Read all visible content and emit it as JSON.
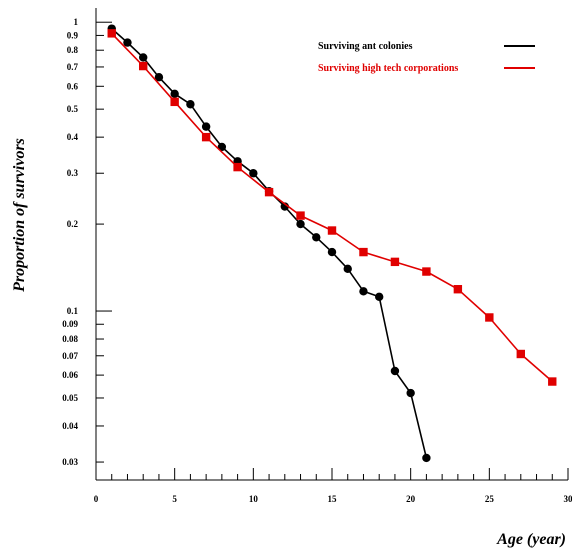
{
  "chart_data": {
    "type": "line",
    "xlabel": "Age (year)",
    "ylabel": "Proportion of survivors",
    "xlim": [
      0,
      30
    ],
    "ylim": [
      0.026,
      1.12
    ],
    "yscale": "log",
    "grid": false,
    "legend_position": "top-right",
    "x_ticks": [
      {
        "v": 0,
        "label": "0"
      },
      {
        "v": 5,
        "label": "5"
      },
      {
        "v": 10,
        "label": "10"
      },
      {
        "v": 15,
        "label": "15"
      },
      {
        "v": 20,
        "label": "20"
      },
      {
        "v": 25,
        "label": "25"
      },
      {
        "v": 30,
        "label": "30"
      }
    ],
    "y_ticks": [
      {
        "v": 1,
        "label": "1"
      },
      {
        "v": 0.9,
        "label": "0.9"
      },
      {
        "v": 0.8,
        "label": "0.8"
      },
      {
        "v": 0.7,
        "label": "0.7"
      },
      {
        "v": 0.6,
        "label": "0.6"
      },
      {
        "v": 0.5,
        "label": "0.5"
      },
      {
        "v": 0.4,
        "label": "0.4"
      },
      {
        "v": 0.3,
        "label": "0.3"
      },
      {
        "v": 0.2,
        "label": "0.2"
      },
      {
        "v": 0.1,
        "label": "0.1"
      },
      {
        "v": 0.09,
        "label": "0.09"
      },
      {
        "v": 0.08,
        "label": "0.08"
      },
      {
        "v": 0.07,
        "label": "0.07"
      },
      {
        "v": 0.06,
        "label": "0.06"
      },
      {
        "v": 0.05,
        "label": "0.05"
      },
      {
        "v": 0.04,
        "label": "0.04"
      },
      {
        "v": 0.03,
        "label": "0.03"
      }
    ],
    "series": [
      {
        "name": "Surviving ant colonies",
        "color": "#000000",
        "marker": "circle",
        "x": [
          1,
          2,
          3,
          4,
          5,
          6,
          7,
          8,
          9,
          10,
          11,
          12,
          13,
          14,
          15,
          16,
          17,
          18,
          19,
          20,
          21
        ],
        "y": [
          0.95,
          0.85,
          0.755,
          0.645,
          0.565,
          0.52,
          0.435,
          0.37,
          0.33,
          0.3,
          0.26,
          0.23,
          0.2,
          0.18,
          0.16,
          0.14,
          0.117,
          0.112,
          0.062,
          0.052,
          0.031
        ]
      },
      {
        "name": "Surviving high tech corporations",
        "color": "#e00000",
        "marker": "square",
        "x": [
          1,
          3,
          5,
          7,
          9,
          11,
          13,
          15,
          17,
          19,
          21,
          23,
          25,
          27,
          29
        ],
        "y": [
          0.915,
          0.705,
          0.53,
          0.4,
          0.315,
          0.258,
          0.214,
          0.19,
          0.16,
          0.148,
          0.137,
          0.119,
          0.095,
          0.071,
          0.057
        ]
      }
    ]
  }
}
